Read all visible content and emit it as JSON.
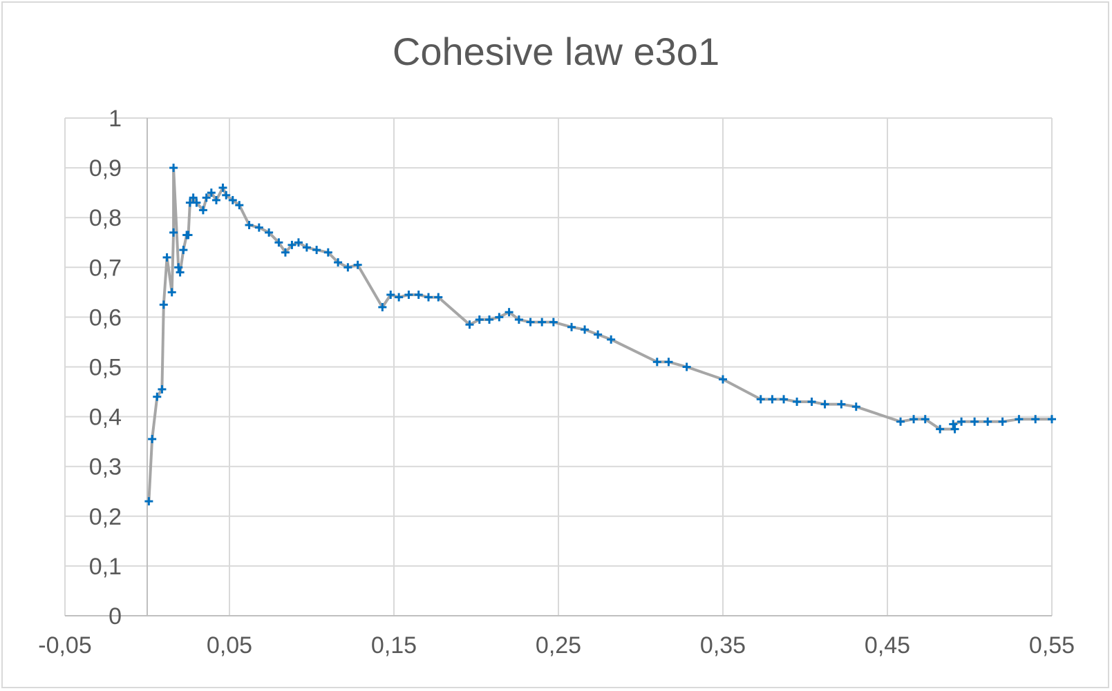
{
  "chart_data": {
    "type": "scatter",
    "title": "Cohesive law e3o1",
    "xlabel": "",
    "ylabel": "",
    "xlim": [
      -0.05,
      0.55
    ],
    "ylim": [
      0,
      1
    ],
    "x_ticks": [
      "-0,05",
      "0,05",
      "0,15",
      "0,25",
      "0,35",
      "0,45",
      "0,55"
    ],
    "y_ticks": [
      "0",
      "0,1",
      "0,2",
      "0,3",
      "0,4",
      "0,5",
      "0,6",
      "0,7",
      "0,8",
      "0,9",
      "1"
    ],
    "grid": true,
    "legend": "none",
    "line_color": "#a6a6a6",
    "marker_color": "#0070c0",
    "marker": "plus",
    "series": [
      {
        "points": [
          [
            0.001,
            0.23
          ],
          [
            0.003,
            0.355
          ],
          [
            0.006,
            0.44
          ],
          [
            0.009,
            0.455
          ],
          [
            0.01,
            0.625
          ],
          [
            0.012,
            0.72
          ],
          [
            0.015,
            0.65
          ],
          [
            0.016,
            0.77
          ],
          [
            0.016,
            0.9
          ],
          [
            0.019,
            0.7
          ],
          [
            0.02,
            0.69
          ],
          [
            0.022,
            0.735
          ],
          [
            0.024,
            0.765
          ],
          [
            0.025,
            0.765
          ],
          [
            0.026,
            0.83
          ],
          [
            0.028,
            0.84
          ],
          [
            0.03,
            0.83
          ],
          [
            0.034,
            0.815
          ],
          [
            0.036,
            0.84
          ],
          [
            0.039,
            0.85
          ],
          [
            0.042,
            0.835
          ],
          [
            0.046,
            0.86
          ],
          [
            0.048,
            0.845
          ],
          [
            0.052,
            0.835
          ],
          [
            0.056,
            0.825
          ],
          [
            0.062,
            0.785
          ],
          [
            0.068,
            0.78
          ],
          [
            0.074,
            0.77
          ],
          [
            0.08,
            0.75
          ],
          [
            0.084,
            0.73
          ],
          [
            0.088,
            0.745
          ],
          [
            0.092,
            0.75
          ],
          [
            0.097,
            0.74
          ],
          [
            0.103,
            0.735
          ],
          [
            0.11,
            0.73
          ],
          [
            0.116,
            0.71
          ],
          [
            0.122,
            0.7
          ],
          [
            0.128,
            0.705
          ],
          [
            0.143,
            0.62
          ],
          [
            0.148,
            0.645
          ],
          [
            0.153,
            0.64
          ],
          [
            0.159,
            0.645
          ],
          [
            0.165,
            0.645
          ],
          [
            0.171,
            0.64
          ],
          [
            0.177,
            0.64
          ],
          [
            0.196,
            0.585
          ],
          [
            0.202,
            0.595
          ],
          [
            0.208,
            0.595
          ],
          [
            0.214,
            0.6
          ],
          [
            0.22,
            0.61
          ],
          [
            0.226,
            0.595
          ],
          [
            0.233,
            0.59
          ],
          [
            0.24,
            0.59
          ],
          [
            0.247,
            0.59
          ],
          [
            0.258,
            0.58
          ],
          [
            0.266,
            0.575
          ],
          [
            0.274,
            0.565
          ],
          [
            0.282,
            0.555
          ],
          [
            0.31,
            0.51
          ],
          [
            0.317,
            0.51
          ],
          [
            0.328,
            0.5
          ],
          [
            0.35,
            0.475
          ],
          [
            0.373,
            0.435
          ],
          [
            0.38,
            0.435
          ],
          [
            0.387,
            0.435
          ],
          [
            0.395,
            0.43
          ],
          [
            0.404,
            0.43
          ],
          [
            0.412,
            0.425
          ],
          [
            0.422,
            0.425
          ],
          [
            0.431,
            0.42
          ],
          [
            0.458,
            0.39
          ],
          [
            0.466,
            0.395
          ],
          [
            0.473,
            0.395
          ],
          [
            0.482,
            0.375
          ],
          [
            0.491,
            0.375
          ],
          [
            0.49,
            0.385
          ],
          [
            0.495,
            0.39
          ],
          [
            0.503,
            0.39
          ],
          [
            0.511,
            0.39
          ],
          [
            0.52,
            0.39
          ],
          [
            0.53,
            0.395
          ],
          [
            0.54,
            0.395
          ],
          [
            0.55,
            0.395
          ]
        ]
      }
    ]
  }
}
